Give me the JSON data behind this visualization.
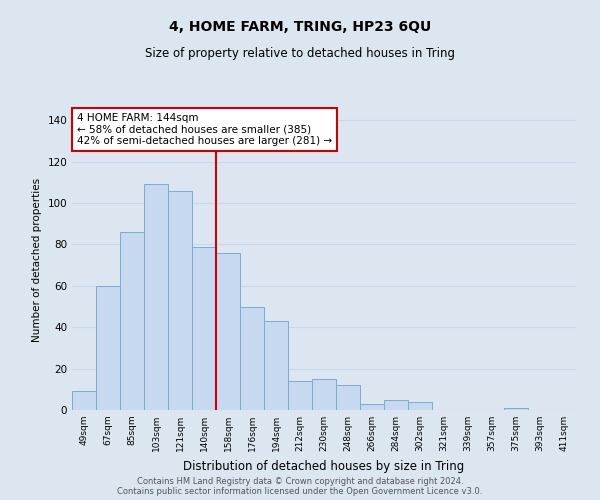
{
  "title": "4, HOME FARM, TRING, HP23 6QU",
  "subtitle": "Size of property relative to detached houses in Tring",
  "xlabel": "Distribution of detached houses by size in Tring",
  "ylabel": "Number of detached properties",
  "bar_labels": [
    "49sqm",
    "67sqm",
    "85sqm",
    "103sqm",
    "121sqm",
    "140sqm",
    "158sqm",
    "176sqm",
    "194sqm",
    "212sqm",
    "230sqm",
    "248sqm",
    "266sqm",
    "284sqm",
    "302sqm",
    "321sqm",
    "339sqm",
    "357sqm",
    "375sqm",
    "393sqm",
    "411sqm"
  ],
  "bar_values": [
    9,
    60,
    86,
    109,
    106,
    79,
    76,
    50,
    43,
    14,
    15,
    12,
    3,
    5,
    4,
    0,
    0,
    0,
    1,
    0,
    0
  ],
  "bar_color": "#c6d9f1",
  "bar_edge_color": "#7aadcf",
  "ylim": [
    0,
    145
  ],
  "yticks": [
    0,
    20,
    40,
    60,
    80,
    100,
    120,
    140
  ],
  "annotation_line1": "4 HOME FARM: 144sqm",
  "annotation_line2": "← 58% of detached houses are smaller (385)",
  "annotation_line3": "42% of semi-detached houses are larger (281) →",
  "annotation_box_color": "#ffffff",
  "annotation_box_edge": "#cc0000",
  "red_line_idx": 5.5,
  "footer1": "Contains HM Land Registry data © Crown copyright and database right 2024.",
  "footer2": "Contains public sector information licensed under the Open Government Licence v3.0.",
  "grid_color": "#c8d8ec",
  "bg_color": "#dce6f1",
  "title_fontsize": 10,
  "subtitle_fontsize": 8.5
}
